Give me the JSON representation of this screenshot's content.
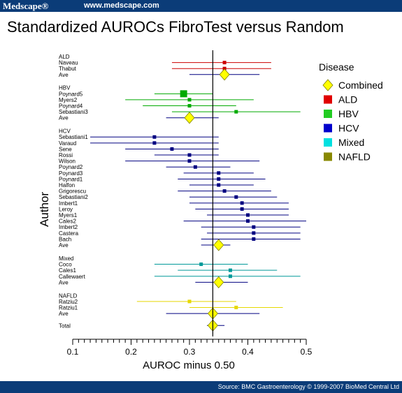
{
  "header": {
    "brand": "Medscape®",
    "site": "www.medscape.com"
  },
  "footer": {
    "source": "Source: BMC Gastroenterology © 1999-2007 BioMed Central Ltd"
  },
  "chart_data": {
    "type": "forest",
    "title": "Standardized AUROCs FibroTest versus Random",
    "xlabel": "AUROC minus 0.50",
    "ylabel": "Author",
    "xlim": [
      0.1,
      0.5
    ],
    "xticks": [
      "0.1",
      "0.2",
      "0.3",
      "0.4",
      "0.5"
    ],
    "reference_line": 0.34,
    "legend": {
      "title": "Disease",
      "position": "right",
      "items": [
        {
          "label": "Combined",
          "color": "#ffff00",
          "marker": "diamond"
        },
        {
          "label": "ALD",
          "color": "#e00000",
          "marker": "square"
        },
        {
          "label": "HBV",
          "color": "#22cc22",
          "marker": "square"
        },
        {
          "label": "HCV",
          "color": "#0000cc",
          "marker": "square"
        },
        {
          "label": "Mixed",
          "color": "#00e0e0",
          "marker": "square"
        },
        {
          "label": "NAFLD",
          "color": "#888800",
          "marker": "square"
        }
      ]
    },
    "groups": [
      {
        "name": "ALD",
        "color": "#cc0000",
        "studies": [
          {
            "label": "Naveau",
            "est": 0.36,
            "lo": 0.27,
            "hi": 0.44
          },
          {
            "label": "Thabut",
            "est": 0.36,
            "lo": 0.27,
            "hi": 0.44
          }
        ],
        "ave": {
          "label": "Ave",
          "est": 0.36,
          "lo": 0.3,
          "hi": 0.42
        }
      },
      {
        "name": "HBV",
        "color": "#00aa00",
        "studies": [
          {
            "label": "Poynard5",
            "est": 0.29,
            "lo": 0.24,
            "hi": 0.34
          },
          {
            "label": "Myers2",
            "est": 0.3,
            "lo": 0.19,
            "hi": 0.41
          },
          {
            "label": "Poynard4",
            "est": 0.3,
            "lo": 0.22,
            "hi": 0.38
          },
          {
            "label": "Sebastiani3",
            "est": 0.38,
            "lo": 0.27,
            "hi": 0.49
          }
        ],
        "ave": {
          "label": "Ave",
          "est": 0.3,
          "lo": 0.26,
          "hi": 0.35
        }
      },
      {
        "name": "HCV",
        "color": "#000080",
        "studies": [
          {
            "label": "Sebastiani1",
            "est": 0.24,
            "lo": 0.13,
            "hi": 0.35
          },
          {
            "label": "Varaud",
            "est": 0.24,
            "lo": 0.13,
            "hi": 0.35
          },
          {
            "label": "Sene",
            "est": 0.27,
            "lo": 0.19,
            "hi": 0.35
          },
          {
            "label": "Rossi",
            "est": 0.3,
            "lo": 0.24,
            "hi": 0.35
          },
          {
            "label": "Wilson",
            "est": 0.3,
            "lo": 0.19,
            "hi": 0.42
          },
          {
            "label": "Poynard2",
            "est": 0.31,
            "lo": 0.26,
            "hi": 0.37
          },
          {
            "label": "Poynard3",
            "est": 0.35,
            "lo": 0.29,
            "hi": 0.41
          },
          {
            "label": "Poynard1",
            "est": 0.35,
            "lo": 0.28,
            "hi": 0.43
          },
          {
            "label": "Halfon",
            "est": 0.35,
            "lo": 0.3,
            "hi": 0.41
          },
          {
            "label": "Grigorescu",
            "est": 0.36,
            "lo": 0.28,
            "hi": 0.44
          },
          {
            "label": "Sebastiani2",
            "est": 0.38,
            "lo": 0.3,
            "hi": 0.45
          },
          {
            "label": "Imbert1",
            "est": 0.39,
            "lo": 0.3,
            "hi": 0.47
          },
          {
            "label": "Leroy",
            "est": 0.39,
            "lo": 0.31,
            "hi": 0.47
          },
          {
            "label": "Myers1",
            "est": 0.4,
            "lo": 0.33,
            "hi": 0.47
          },
          {
            "label": "Cales2",
            "est": 0.4,
            "lo": 0.29,
            "hi": 0.5
          },
          {
            "label": "Imbert2",
            "est": 0.41,
            "lo": 0.32,
            "hi": 0.49
          },
          {
            "label": "Castera",
            "est": 0.41,
            "lo": 0.33,
            "hi": 0.49
          },
          {
            "label": "Bach",
            "est": 0.41,
            "lo": 0.32,
            "hi": 0.49
          }
        ],
        "ave": {
          "label": "Ave",
          "est": 0.35,
          "lo": 0.32,
          "hi": 0.37
        }
      },
      {
        "name": "Mixed",
        "color": "#009999",
        "studies": [
          {
            "label": "Coco",
            "est": 0.32,
            "lo": 0.24,
            "hi": 0.4
          },
          {
            "label": "Cales1",
            "est": 0.37,
            "lo": 0.28,
            "hi": 0.45
          },
          {
            "label": "Callewaert",
            "est": 0.37,
            "lo": 0.24,
            "hi": 0.49
          }
        ],
        "ave": {
          "label": "Ave",
          "est": 0.35,
          "lo": 0.31,
          "hi": 0.4
        }
      },
      {
        "name": "NAFLD",
        "color": "#e6d800",
        "studies": [
          {
            "label": "Ratziu2",
            "est": 0.3,
            "lo": 0.21,
            "hi": 0.38
          },
          {
            "label": "Ratziu1",
            "est": 0.38,
            "lo": 0.3,
            "hi": 0.46
          }
        ],
        "ave": {
          "label": "Ave",
          "est": 0.34,
          "lo": 0.26,
          "hi": 0.42
        }
      }
    ],
    "total": {
      "label": "Total",
      "est": 0.34,
      "lo": 0.33,
      "hi": 0.36
    }
  }
}
